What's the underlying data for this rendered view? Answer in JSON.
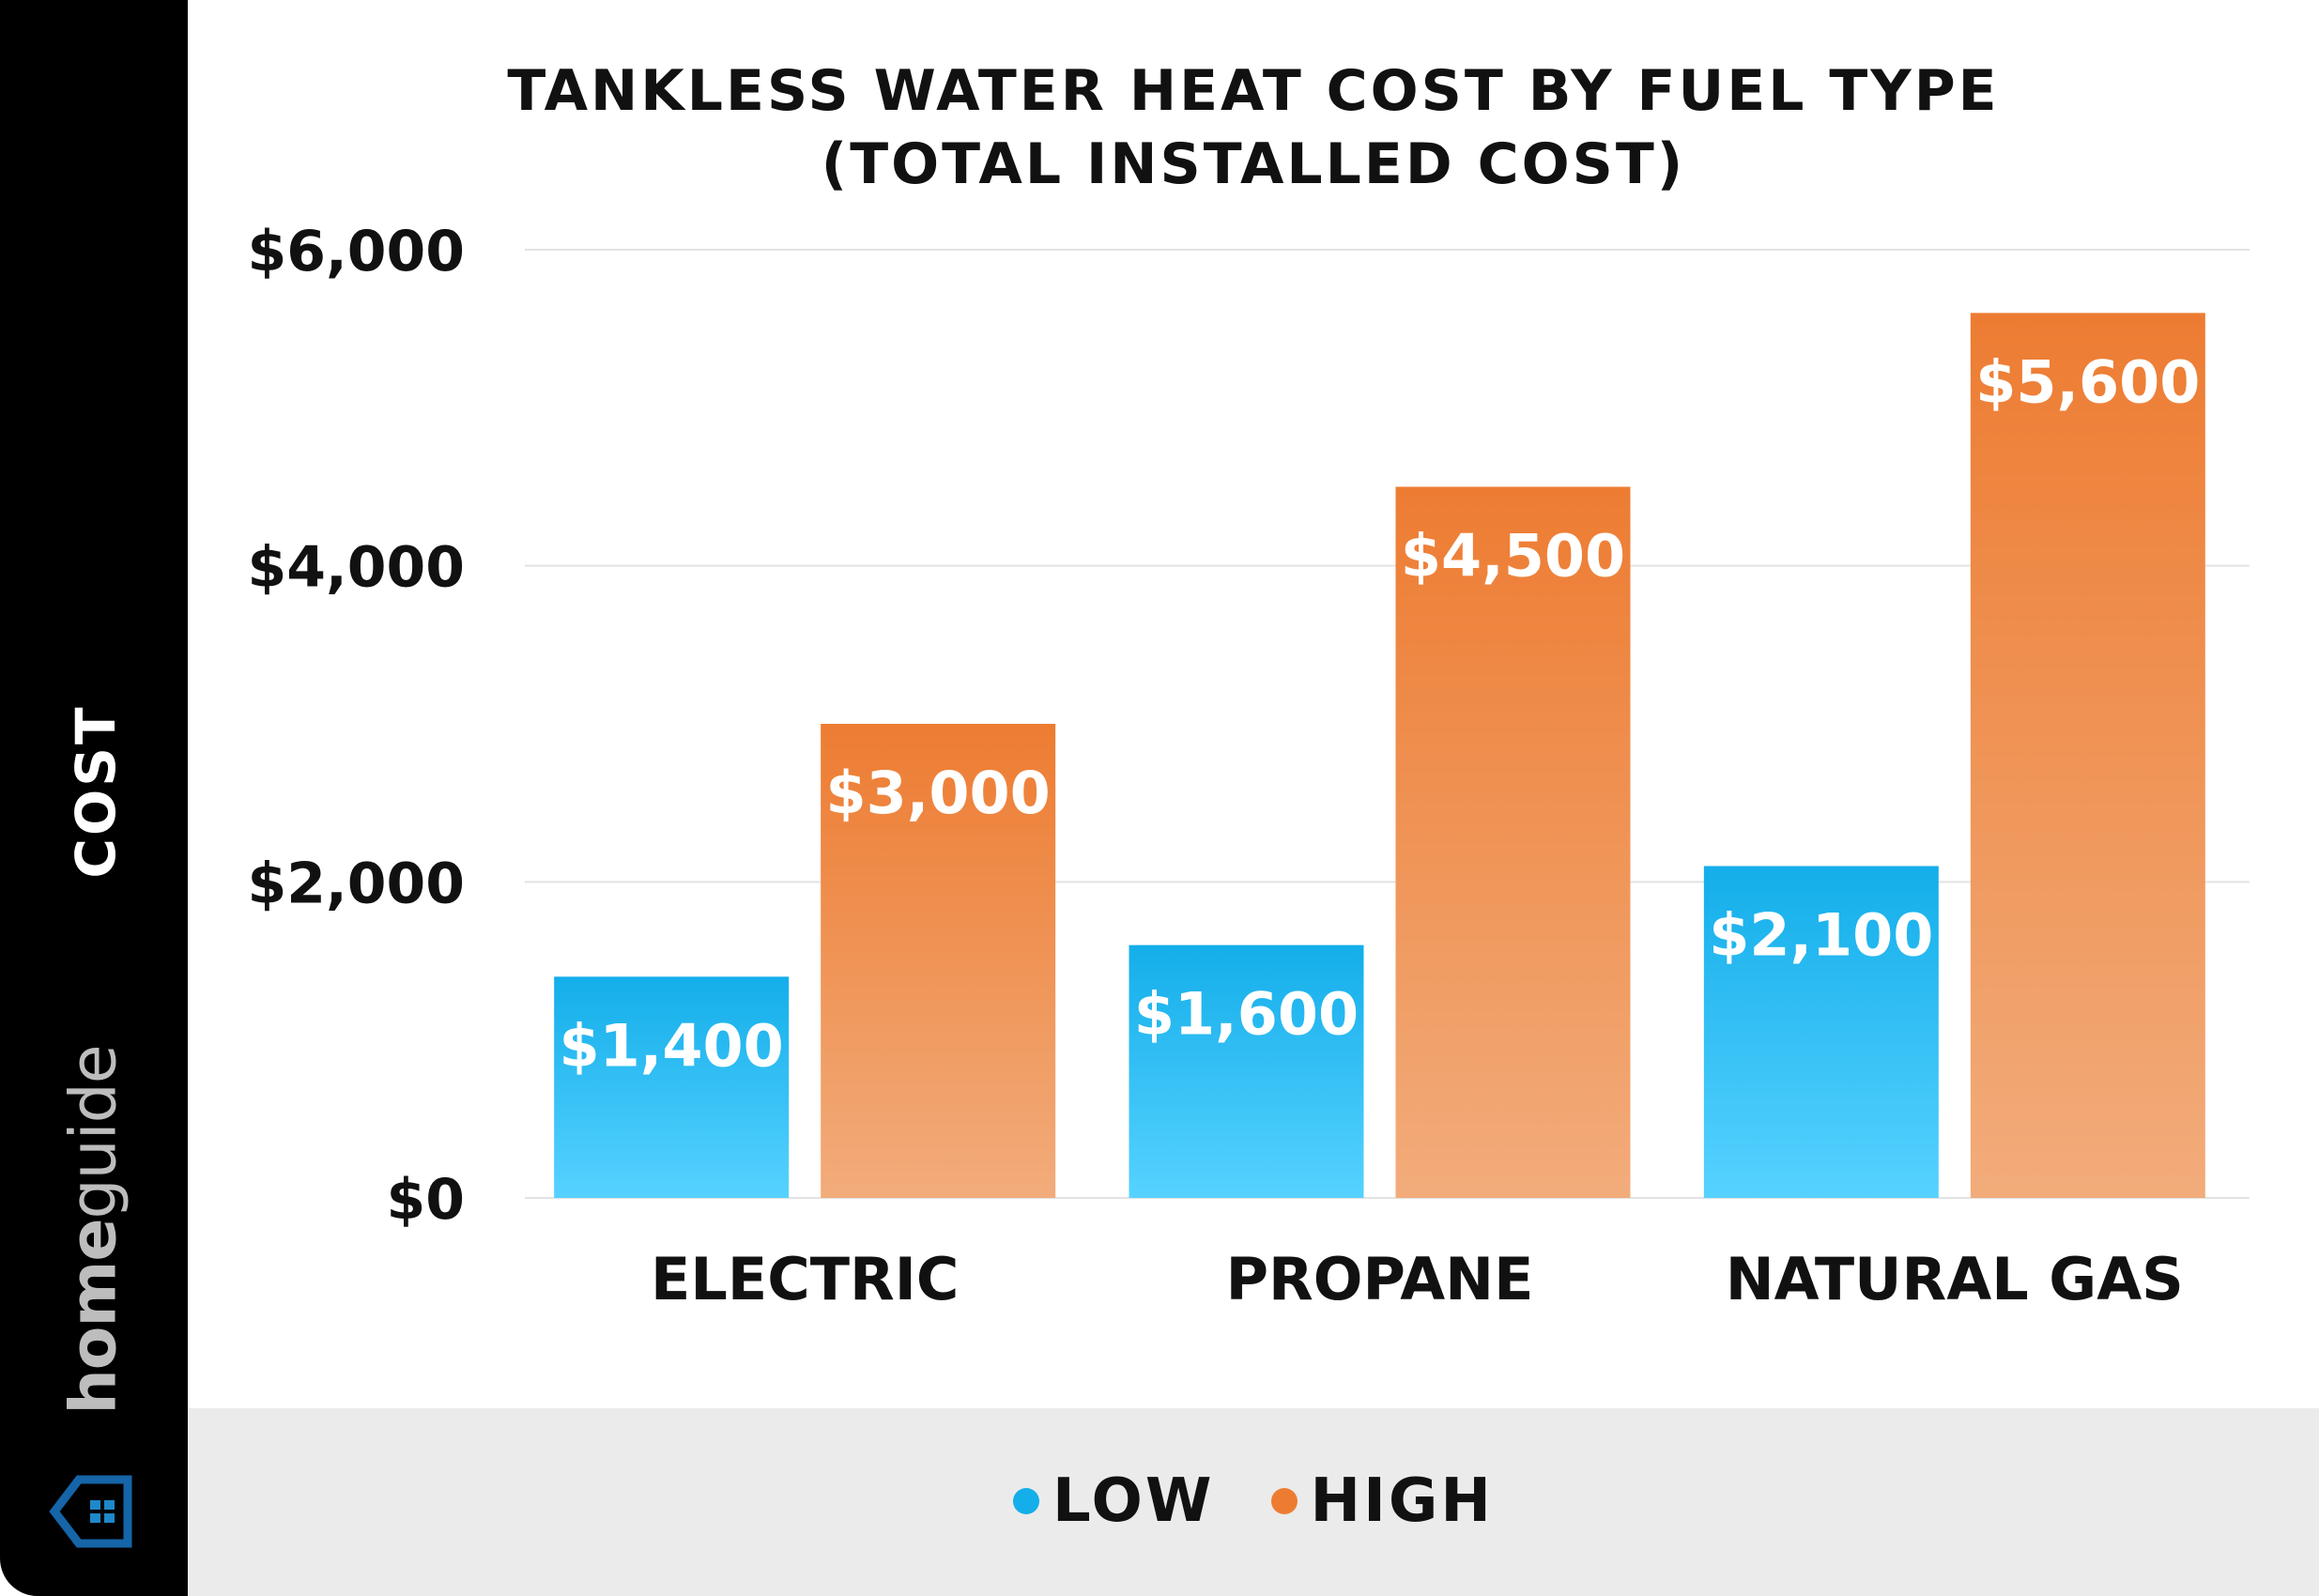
{
  "chart_data": {
    "type": "bar",
    "title": "TANKLESS WATER HEAT COST BY FUEL TYPE",
    "subtitle": "(TOTAL INSTALLED COST)",
    "ylabel": "COST",
    "xlabel": "",
    "categories": [
      "ELECTRIC",
      "PROPANE",
      "NATURAL GAS"
    ],
    "series": [
      {
        "name": "LOW",
        "values": [
          1400,
          1600,
          2100
        ],
        "labels": [
          "$1,400",
          "$1,600",
          "$2,100"
        ],
        "color": "#14aeea",
        "color_light": "#56d2ff"
      },
      {
        "name": "HIGH",
        "values": [
          3000,
          4500,
          5600
        ],
        "labels": [
          "$3,000",
          "$4,500",
          "$5,600"
        ],
        "color": "#ed7c32",
        "color_light": "#f2ac7b"
      }
    ],
    "ylim": [
      0,
      6000
    ],
    "yticks": [
      0,
      2000,
      4000,
      6000
    ],
    "ytick_labels": [
      "$0",
      "$2,000",
      "$4,000",
      "$6,000"
    ],
    "grid": true,
    "legend": "bottom"
  },
  "brand": {
    "light": "home",
    "bold_part": "home",
    "rest": "guide",
    "name": "homeguide",
    "icon": "house-icon",
    "color": "#1565a8"
  }
}
